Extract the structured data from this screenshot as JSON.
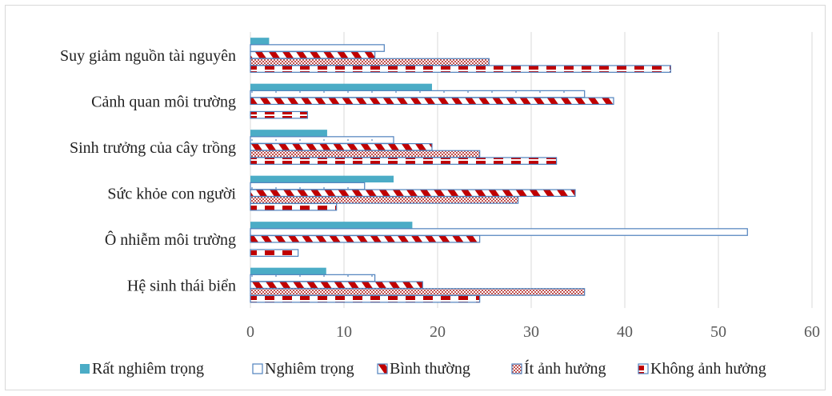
{
  "chart_data": {
    "type": "bar",
    "orientation": "horizontal",
    "categories": [
      "Suy giảm nguồn tài nguyên",
      "Cảnh quan môi trường",
      "Sinh trưởng của cây trồng",
      "Sức khỏe con người",
      "Ô nhiễm môi trường",
      "Hệ sinh thái biển"
    ],
    "series": [
      {
        "name": "Rất nghiêm trọng",
        "values": [
          2,
          19.4,
          8.2,
          15.3,
          17.3,
          8.1
        ],
        "color": "#4bacc6",
        "pattern": "solid"
      },
      {
        "name": "Nghiêm trọng",
        "values": [
          14.3,
          35.7,
          15.3,
          12.2,
          53.1,
          13.3
        ],
        "color": "#4f81bd",
        "pattern": "outline"
      },
      {
        "name": "Bình thường",
        "values": [
          13.3,
          38.8,
          19.4,
          34.7,
          24.5,
          18.4
        ],
        "color": "#c00000",
        "pattern": "diagonal"
      },
      {
        "name": "Ít ảnh hưởng",
        "values": [
          25.5,
          0,
          24.5,
          28.6,
          0,
          35.7
        ],
        "color": "#c0504d",
        "pattern": "checker"
      },
      {
        "name": "Không ảnh hưởng",
        "values": [
          44.9,
          6.1,
          32.7,
          9.2,
          5.1,
          24.5
        ],
        "color": "#c00000",
        "pattern": "dashes"
      }
    ],
    "x_ticks": [
      "0",
      "10",
      "20",
      "30",
      "40",
      "50",
      "60"
    ],
    "xlim": [
      0,
      60
    ],
    "grid": true,
    "legend_position": "bottom",
    "title": "",
    "xlabel": "",
    "ylabel": ""
  }
}
